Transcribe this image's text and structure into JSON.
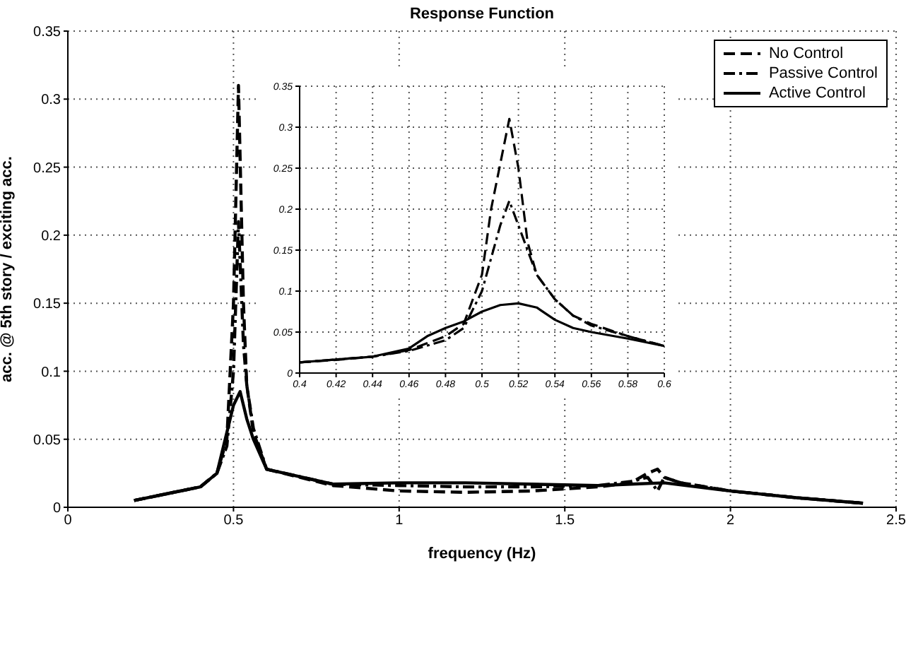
{
  "chart_data": [
    {
      "type": "line",
      "title": "Response Function",
      "xlabel": "frequency (Hz)",
      "ylabel": "acc. @ 5th story / exciting acc.",
      "xlim": [
        0,
        2.5
      ],
      "xticks": [
        0,
        0.5,
        1,
        1.5,
        2,
        2.5
      ],
      "ylim": [
        0,
        0.35
      ],
      "yticks": [
        0,
        0.05,
        0.1,
        0.15,
        0.2,
        0.25,
        0.3,
        0.35
      ],
      "grid": true,
      "legend": "top right",
      "marker": "none",
      "series": [
        {
          "name": "No Control",
          "color": "#000000",
          "line_style": "dashed",
          "x": [
            0.2,
            0.3,
            0.4,
            0.45,
            0.48,
            0.5,
            0.515,
            0.53,
            0.54,
            0.56,
            0.6,
            0.8,
            1.0,
            1.2,
            1.4,
            1.6,
            1.7,
            1.75,
            1.78,
            1.8,
            1.85,
            2.0,
            2.2,
            2.4
          ],
          "values": [
            0.005,
            0.01,
            0.015,
            0.025,
            0.05,
            0.15,
            0.31,
            0.15,
            0.09,
            0.055,
            0.028,
            0.016,
            0.012,
            0.011,
            0.012,
            0.015,
            0.018,
            0.025,
            0.028,
            0.022,
            0.018,
            0.012,
            0.007,
            0.003
          ]
        },
        {
          "name": "Passive Control",
          "color": "#000000",
          "line_style": "dashdot",
          "x": [
            0.2,
            0.3,
            0.4,
            0.45,
            0.48,
            0.5,
            0.515,
            0.53,
            0.54,
            0.56,
            0.6,
            0.8,
            1.0,
            1.2,
            1.4,
            1.6,
            1.7,
            1.75,
            1.78,
            1.8,
            1.85,
            2.0,
            2.2,
            2.4
          ],
          "values": [
            0.005,
            0.01,
            0.015,
            0.025,
            0.045,
            0.1,
            0.21,
            0.12,
            0.09,
            0.058,
            0.028,
            0.017,
            0.016,
            0.015,
            0.015,
            0.016,
            0.019,
            0.022,
            0.012,
            0.022,
            0.018,
            0.012,
            0.007,
            0.003
          ]
        },
        {
          "name": "Active Control",
          "color": "#000000",
          "line_style": "solid",
          "x": [
            0.2,
            0.3,
            0.4,
            0.45,
            0.48,
            0.5,
            0.52,
            0.54,
            0.56,
            0.6,
            0.8,
            1.0,
            1.2,
            1.4,
            1.6,
            1.7,
            1.8,
            2.0,
            2.2,
            2.4
          ],
          "values": [
            0.005,
            0.01,
            0.015,
            0.025,
            0.055,
            0.075,
            0.085,
            0.065,
            0.05,
            0.028,
            0.017,
            0.018,
            0.018,
            0.017,
            0.016,
            0.017,
            0.018,
            0.012,
            0.007,
            0.003
          ]
        }
      ]
    },
    {
      "type": "line",
      "xlim": [
        0.4,
        0.6
      ],
      "xticks": [
        0.4,
        0.42,
        0.44,
        0.46,
        0.48,
        0.5,
        0.52,
        0.54,
        0.56,
        0.58,
        0.6
      ],
      "ylim": [
        0,
        0.35
      ],
      "yticks": [
        0,
        0.05,
        0.1,
        0.15,
        0.2,
        0.25,
        0.3,
        0.35
      ],
      "grid": true,
      "marker": "none",
      "series": [
        {
          "color": "#000000",
          "line_style": "dashed",
          "x": [
            0.4,
            0.42,
            0.44,
            0.46,
            0.48,
            0.49,
            0.5,
            0.505,
            0.515,
            0.52,
            0.525,
            0.53,
            0.54,
            0.55,
            0.56,
            0.58,
            0.6
          ],
          "values": [
            0.013,
            0.016,
            0.02,
            0.028,
            0.045,
            0.06,
            0.12,
            0.2,
            0.31,
            0.25,
            0.16,
            0.12,
            0.09,
            0.07,
            0.06,
            0.045,
            0.033
          ]
        },
        {
          "color": "#000000",
          "line_style": "dashdot",
          "x": [
            0.4,
            0.44,
            0.46,
            0.48,
            0.49,
            0.5,
            0.51,
            0.515,
            0.52,
            0.53,
            0.54,
            0.55,
            0.56,
            0.58,
            0.6
          ],
          "values": [
            0.013,
            0.02,
            0.027,
            0.04,
            0.055,
            0.1,
            0.18,
            0.21,
            0.18,
            0.12,
            0.09,
            0.07,
            0.058,
            0.045,
            0.033
          ]
        },
        {
          "color": "#000000",
          "line_style": "solid",
          "x": [
            0.4,
            0.44,
            0.46,
            0.47,
            0.48,
            0.49,
            0.5,
            0.51,
            0.52,
            0.53,
            0.54,
            0.55,
            0.56,
            0.58,
            0.6
          ],
          "values": [
            0.013,
            0.02,
            0.03,
            0.045,
            0.055,
            0.063,
            0.075,
            0.083,
            0.085,
            0.08,
            0.065,
            0.055,
            0.05,
            0.042,
            0.033
          ]
        }
      ]
    }
  ]
}
